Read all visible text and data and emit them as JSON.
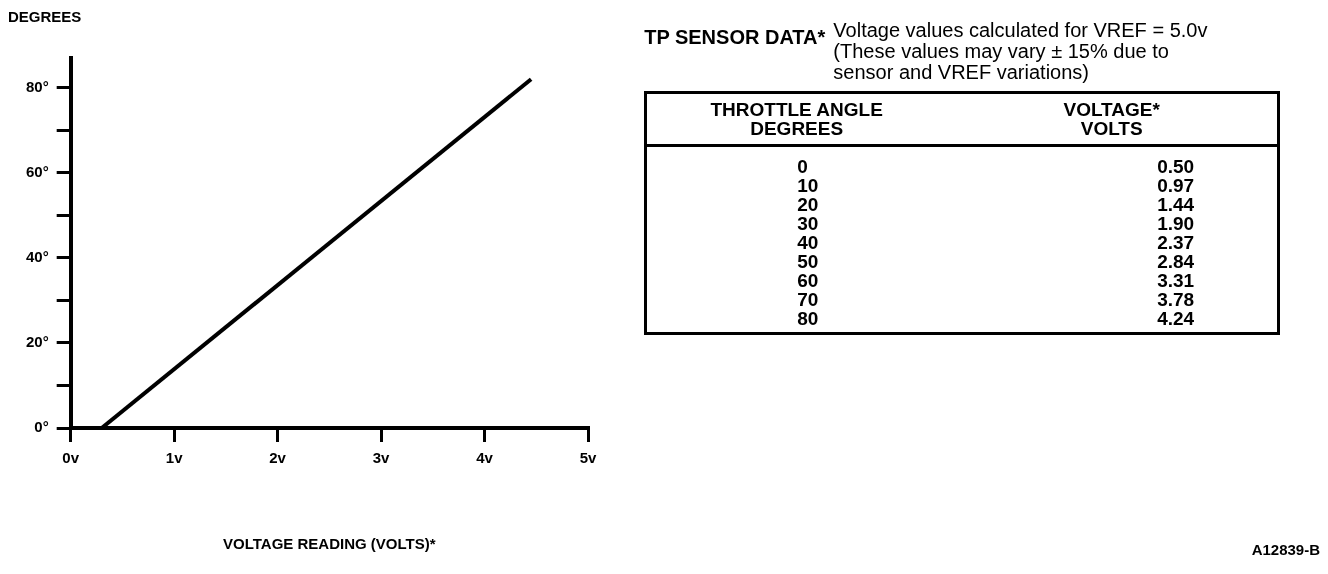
{
  "chart_data": [
    {
      "type": "line",
      "ylabel": "DEGREES",
      "xlabel": "VOLTAGE READING (VOLTS)*",
      "x": [
        0.3,
        4.45
      ],
      "values": [
        0,
        82
      ],
      "color": "#000000",
      "marker": "none",
      "line_style": "solid",
      "xlim": [
        0,
        5
      ],
      "ylim": [
        0,
        87
      ],
      "xticks": [
        {
          "value": 0,
          "label": "0v"
        },
        {
          "value": 1,
          "label": "1v"
        },
        {
          "value": 2,
          "label": "2v"
        },
        {
          "value": 3,
          "label": "3v"
        },
        {
          "value": 4,
          "label": "4v"
        },
        {
          "value": 5,
          "label": "5v"
        }
      ],
      "yticks": [
        {
          "value": 0,
          "label": "0°"
        },
        {
          "value": 10,
          "label": null
        },
        {
          "value": 20,
          "label": "20°"
        },
        {
          "value": 30,
          "label": null
        },
        {
          "value": 40,
          "label": "40°"
        },
        {
          "value": 50,
          "label": null
        },
        {
          "value": 60,
          "label": "60°"
        },
        {
          "value": 70,
          "label": null
        },
        {
          "value": 80,
          "label": "80°"
        }
      ]
    },
    {
      "type": "other",
      "title": "TP SENSOR DATA*",
      "subtitle": "Voltage values calculated for VREF = 5.0v (These values may vary ± 15% due to sensor and VREF variations)",
      "annotations": [
        "THROTTLE ANGLE DEGREES",
        "VOLTAGE* VOLTS",
        "0",
        "0.50",
        "10",
        "0.97",
        "20",
        "1.44",
        "30",
        "1.90",
        "40",
        "2.37",
        "50",
        "2.84",
        "60",
        "3.31",
        "70",
        "3.78",
        "80",
        "4.24",
        "A12839-B"
      ]
    }
  ]
}
